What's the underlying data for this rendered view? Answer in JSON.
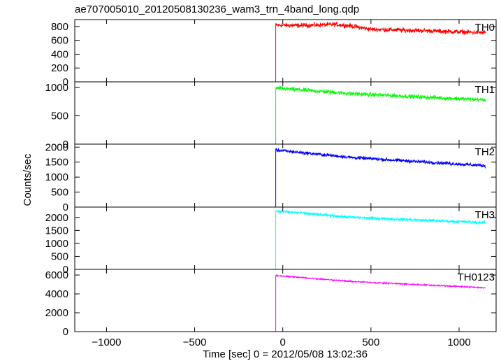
{
  "chart_data": {
    "type": "line",
    "title": "ae707005010_20120508130236_wam3_trn_4band_long.qdp",
    "xlabel": "Time [sec] 0 = 2012/05/08 13:02:36",
    "ylabel": "Counts/sec",
    "xlim": [
      -1180,
      1210
    ],
    "xticks": [
      -1000,
      -500,
      0,
      500,
      1000
    ],
    "xtick_labels": [
      "−1000",
      "−500",
      "0",
      "500",
      "1000"
    ],
    "t_on": -40,
    "t_start": -1150,
    "t_end": 1150,
    "grid": false,
    "panels": [
      {
        "name": "TH0",
        "color": "#ff0000",
        "ylim": [
          0,
          900
        ],
        "yticks": [
          0,
          200,
          400,
          600,
          800
        ],
        "ytick_labels": [
          "0",
          "200",
          "400",
          "600",
          "800"
        ],
        "pre": 0,
        "curve": [
          [
            -40,
            820
          ],
          [
            100,
            815
          ],
          [
            300,
            830
          ],
          [
            380,
            810
          ],
          [
            500,
            760
          ],
          [
            800,
            740
          ],
          [
            1150,
            710
          ]
        ],
        "noise": 40
      },
      {
        "name": "TH1",
        "color": "#00ff00",
        "ylim": [
          0,
          1100
        ],
        "yticks": [
          0,
          500,
          1000
        ],
        "ytick_labels": [
          "0",
          "500",
          "1000"
        ],
        "pre": 0,
        "curve": [
          [
            -40,
            990
          ],
          [
            400,
            890
          ],
          [
            1150,
            780
          ]
        ],
        "noise": 45
      },
      {
        "name": "TH2",
        "color": "#0000ff",
        "ylim": [
          0,
          2100
        ],
        "yticks": [
          0,
          500,
          1000,
          1500,
          2000
        ],
        "ytick_labels": [
          "0",
          "500",
          "1000",
          "1500",
          "2000"
        ],
        "pre": 0,
        "curve": [
          [
            -40,
            1900
          ],
          [
            400,
            1650
          ],
          [
            1150,
            1380
          ]
        ],
        "noise": 70
      },
      {
        "name": "TH3",
        "color": "#00ffff",
        "ylim": [
          0,
          2400
        ],
        "yticks": [
          0,
          500,
          1000,
          1500,
          2000
        ],
        "ytick_labels": [
          "0",
          "500",
          "1000",
          "1500",
          "2000"
        ],
        "pre": 0,
        "curve": [
          [
            -40,
            2250
          ],
          [
            400,
            2000
          ],
          [
            1150,
            1800
          ]
        ],
        "noise": 70
      },
      {
        "name": "TH0123",
        "color": "#ff00ff",
        "ylim": [
          0,
          6600
        ],
        "yticks": [
          0,
          2000,
          4000,
          6000
        ],
        "ytick_labels": [
          "0",
          "2000",
          "4000",
          "6000"
        ],
        "pre": 0,
        "curve": [
          [
            -40,
            5950
          ],
          [
            400,
            5300
          ],
          [
            1150,
            4650
          ]
        ],
        "noise": 90
      }
    ]
  }
}
